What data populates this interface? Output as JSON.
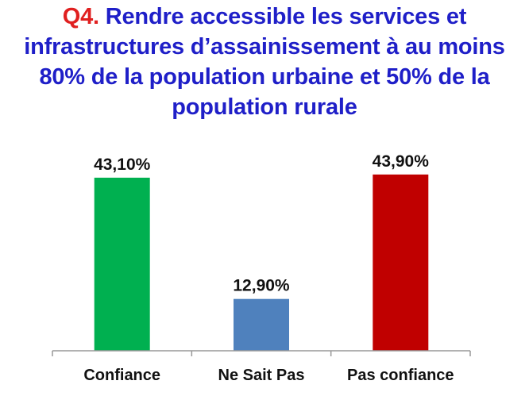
{
  "title": {
    "prefix": "Q4.",
    "text": " Rendre accessible les services et infrastructures d’assainissement à au moins 80% de la population urbaine et 50% de la population rurale"
  },
  "colors": {
    "title": "#1f1fc8",
    "prefix": "#e02020",
    "axis": "#999999"
  },
  "chart_data": {
    "type": "bar",
    "categories": [
      "Confiance",
      "Ne Sait Pas",
      "Pas confiance"
    ],
    "values": [
      43.1,
      12.9,
      43.9
    ],
    "value_labels": [
      "43,10%",
      "12,90%",
      "43,90%"
    ],
    "colors": [
      "#00b050",
      "#4f81bd",
      "#c00000"
    ],
    "xlabel": "",
    "ylabel": "",
    "ylim": [
      0,
      50
    ],
    "grid": false,
    "legend": "none"
  }
}
